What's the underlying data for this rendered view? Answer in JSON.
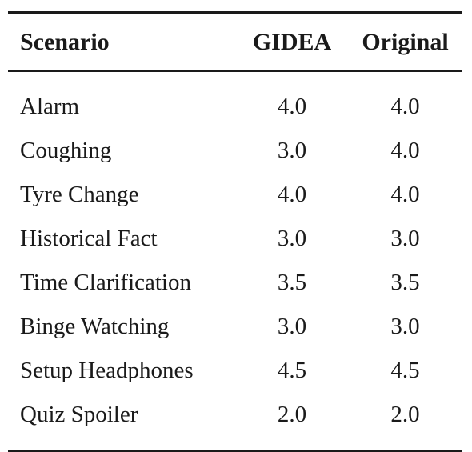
{
  "table": {
    "headers": {
      "scenario": "Scenario",
      "gidea": "GIDEA",
      "original": "Original"
    },
    "rows": [
      {
        "scenario": "Alarm",
        "gidea": "4.0",
        "original": "4.0"
      },
      {
        "scenario": "Coughing",
        "gidea": "3.0",
        "original": "4.0"
      },
      {
        "scenario": "Tyre Change",
        "gidea": "4.0",
        "original": "4.0"
      },
      {
        "scenario": "Historical Fact",
        "gidea": "3.0",
        "original": "3.0"
      },
      {
        "scenario": "Time Clarification",
        "gidea": "3.5",
        "original": "3.5"
      },
      {
        "scenario": "Binge Watching",
        "gidea": "3.0",
        "original": "3.0"
      },
      {
        "scenario": "Setup Headphones",
        "gidea": "4.5",
        "original": "4.5"
      },
      {
        "scenario": "Quiz Spoiler",
        "gidea": "2.0",
        "original": "2.0"
      }
    ]
  }
}
